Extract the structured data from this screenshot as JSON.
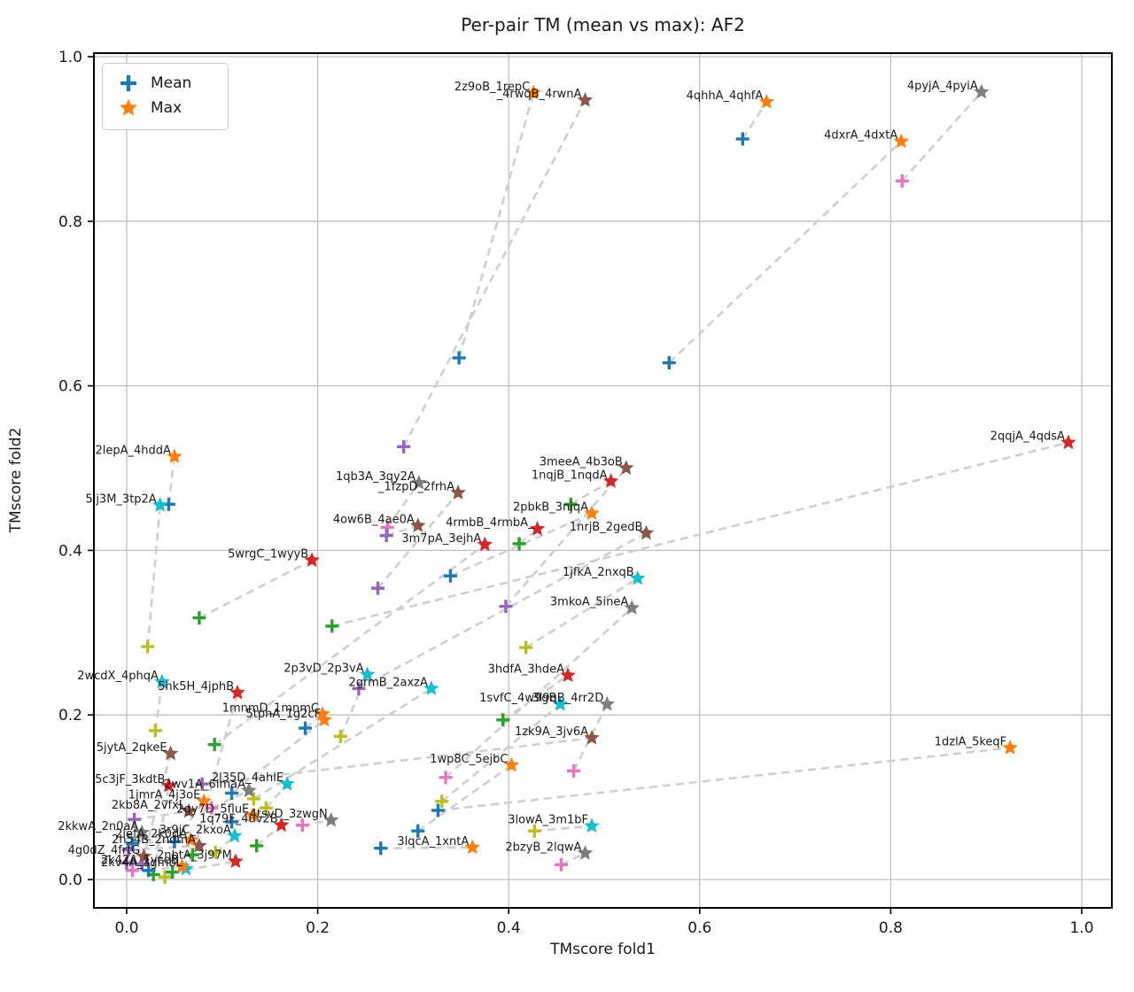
{
  "title": "Per-pair TM (mean vs max): AF2",
  "xlabel": "TMscore fold1",
  "ylabel": "TMscore fold2",
  "legend": {
    "mean_label": "Mean",
    "max_label": "Max"
  },
  "colors": {
    "mean_legend": "#1f77b4",
    "max_legend": "#ff7f0e",
    "grid": "#c0c0c0",
    "spine": "#000000",
    "connector": "#cfcfcf",
    "text": "#1a1a1a"
  },
  "chart_data": {
    "type": "scatter",
    "title": "Per-pair TM (mean vs max): AF2",
    "xlabel": "TMscore fold1",
    "ylabel": "TMscore fold2",
    "xlim": [
      -0.034,
      1.031
    ],
    "ylim": [
      -0.035,
      1.004
    ],
    "x_ticks": [
      0.0,
      0.2,
      0.4,
      0.6,
      0.8,
      1.0
    ],
    "y_ticks": [
      0.0,
      0.2,
      0.4,
      0.6,
      0.8,
      1.0
    ],
    "grid": true,
    "legend_position": "upper left",
    "series_legend": [
      {
        "name": "Mean",
        "marker": "plus",
        "color": "#1f77b4"
      },
      {
        "name": "Max",
        "marker": "star",
        "color": "#ff7f0e"
      }
    ],
    "pairs": [
      {
        "label": "2z9oB_1repC",
        "mean": [
          0.348,
          0.634
        ],
        "max": [
          0.426,
          0.956
        ],
        "mean_color": "#1f77b4",
        "max_color": "#ff7f0e"
      },
      {
        "label": "_4rwqB_4rwnA",
        "mean": [
          0.29,
          0.526
        ],
        "max": [
          0.48,
          0.947
        ],
        "mean_color": "#9467bd",
        "max_color": "#8c564b"
      },
      {
        "label": "4qhhA_4qhfA",
        "mean": [
          0.645,
          0.9
        ],
        "max": [
          0.67,
          0.945
        ],
        "mean_color": "#1f77b4",
        "max_color": "#ff7f0e"
      },
      {
        "label": "4pyjA_4pyiA",
        "mean": [
          0.812,
          0.849
        ],
        "max": [
          0.895,
          0.957
        ],
        "mean_color": "#e377c2",
        "max_color": "#7f7f7f"
      },
      {
        "label": "4dxrA_4dxtA",
        "mean": [
          0.568,
          0.628
        ],
        "max": [
          0.811,
          0.897
        ],
        "mean_color": "#1f77b4",
        "max_color": "#ff7f0e"
      },
      {
        "label": "2lepA_4hddA",
        "mean": [
          0.044,
          0.456
        ],
        "max": [
          0.05,
          0.514
        ],
        "mean_color": "#1f77b4",
        "max_color": "#ff7f0e"
      },
      {
        "label": "5lj3M_3tp2A",
        "mean": [
          0.022,
          0.283
        ],
        "max": [
          0.035,
          0.455
        ],
        "mean_color": "#bcbd22",
        "max_color": "#17becf"
      },
      {
        "label": "1qb3A_3qy2A",
        "mean": [
          0.273,
          0.428
        ],
        "max": [
          0.306,
          0.482
        ],
        "mean_color": "#e377c2",
        "max_color": "#7f7f7f"
      },
      {
        "label": "_1fzpD_2frhA",
        "mean": [
          0.263,
          0.354
        ],
        "max": [
          0.347,
          0.47
        ],
        "mean_color": "#9467bd",
        "max_color": "#8c564b"
      },
      {
        "label": "3meeA_4b3oB",
        "mean": [
          0.397,
          0.332
        ],
        "max": [
          0.523,
          0.5
        ],
        "mean_color": "#9467bd",
        "max_color": "#8c564b"
      },
      {
        "label": "1nqjB_1nqdA",
        "mean": [
          0.465,
          0.456
        ],
        "max": [
          0.507,
          0.484
        ],
        "mean_color": "#2ca02c",
        "max_color": "#d62728"
      },
      {
        "label": "2pbkB_3njqA",
        "mean": [
          0.339,
          0.369
        ],
        "max": [
          0.487,
          0.445
        ],
        "mean_color": "#1f77b4",
        "max_color": "#ff7f0e"
      },
      {
        "label": "4ow6B_4ae0A",
        "mean": [
          0.272,
          0.418
        ],
        "max": [
          0.305,
          0.43
        ],
        "mean_color": "#9467bd",
        "max_color": "#8c564b"
      },
      {
        "label": "4rmbB_4rmbA_",
        "mean": [
          0.411,
          0.408
        ],
        "max": [
          0.43,
          0.426
        ],
        "mean_color": "#2ca02c",
        "max_color": "#d62728"
      },
      {
        "label": "1nrjB_2gedB",
        "mean": [
          0.243,
          0.232
        ],
        "max": [
          0.544,
          0.421
        ],
        "mean_color": "#9467bd",
        "max_color": "#8c564b"
      },
      {
        "label": "3m7pA_3ejhA",
        "mean": [
          0.092,
          0.164
        ],
        "max": [
          0.375,
          0.407
        ],
        "mean_color": "#2ca02c",
        "max_color": "#d62728"
      },
      {
        "label": "5wrgC_1wyyB",
        "mean": [
          0.076,
          0.318
        ],
        "max": [
          0.194,
          0.388
        ],
        "mean_color": "#2ca02c",
        "max_color": "#d62728"
      },
      {
        "label": "1jfkA_2nxqB",
        "mean": [
          0.418,
          0.282
        ],
        "max": [
          0.535,
          0.366
        ],
        "mean_color": "#bcbd22",
        "max_color": "#17becf"
      },
      {
        "label": "3mkoA_5ineA",
        "mean": [
          0.334,
          0.124
        ],
        "max": [
          0.529,
          0.33
        ],
        "mean_color": "#e377c2",
        "max_color": "#7f7f7f"
      },
      {
        "label": "2wcdX_4phqA",
        "mean": [
          0.03,
          0.181
        ],
        "max": [
          0.037,
          0.24
        ],
        "mean_color": "#bcbd22",
        "max_color": "#17becf"
      },
      {
        "label": "5hk5H_4jphB",
        "mean": [
          0.069,
          0.03
        ],
        "max": [
          0.116,
          0.227
        ],
        "mean_color": "#2ca02c",
        "max_color": "#d62728"
      },
      {
        "label": "2p3vD_2p3vA",
        "mean": [
          0.224,
          0.174
        ],
        "max": [
          0.252,
          0.249
        ],
        "mean_color": "#bcbd22",
        "max_color": "#17becf"
      },
      {
        "label": "2grmB_2axzA",
        "mean": [
          0.133,
          0.098
        ],
        "max": [
          0.319,
          0.232
        ],
        "mean_color": "#bcbd22",
        "max_color": "#17becf"
      },
      {
        "label": "3hdfA_3hdeA",
        "mean": [
          0.394,
          0.194
        ],
        "max": [
          0.462,
          0.248
        ],
        "mean_color": "#2ca02c",
        "max_color": "#d62728"
      },
      {
        "label": "1svfC_4w9gB",
        "mean": [
          0.33,
          0.095
        ],
        "max": [
          0.454,
          0.213
        ],
        "mean_color": "#bcbd22",
        "max_color": "#17becf"
      },
      {
        "label": "3l9qB_4rr2D",
        "mean": [
          0.468,
          0.132
        ],
        "max": [
          0.503,
          0.213
        ],
        "mean_color": "#e377c2",
        "max_color": "#7f7f7f"
      },
      {
        "label": "1mnmD_1mnmC",
        "mean": [
          0.187,
          0.184
        ],
        "max": [
          0.205,
          0.201
        ],
        "mean_color": "#1f77b4",
        "max_color": "#ff7f0e"
      },
      {
        "label": "5tphA_1g2cF",
        "mean": [
          0.11,
          0.105
        ],
        "max": [
          0.207,
          0.194
        ],
        "mean_color": "#1f77b4",
        "max_color": "#ff7f0e"
      },
      {
        "label": "1zk9A_3jv6A",
        "mean": [
          0.079,
          0.116
        ],
        "max": [
          0.487,
          0.172
        ],
        "mean_color": "#9467bd",
        "max_color": "#8c564b"
      },
      {
        "label": "1dzlA_5keqF",
        "mean": [
          0.326,
          0.084
        ],
        "max": [
          0.925,
          0.16
        ],
        "mean_color": "#1f77b4",
        "max_color": "#ff7f0e"
      },
      {
        "label": "2qqjA_4qdsA",
        "mean": [
          0.215,
          0.308
        ],
        "max": [
          0.986,
          0.531
        ],
        "mean_color": "#2ca02c",
        "max_color": "#d62728"
      },
      {
        "label": "1wp8C_5ejbC",
        "mean": [
          0.305,
          0.059
        ],
        "max": [
          0.403,
          0.139
        ],
        "mean_color": "#1f77b4",
        "max_color": "#ff7f0e"
      },
      {
        "label": "5jytA_2qkeE",
        "mean": [
          0.016,
          0.019
        ],
        "max": [
          0.046,
          0.153
        ],
        "mean_color": "#9467bd",
        "max_color": "#8c564b"
      },
      {
        "label": "4tsvD_3zwgN",
        "mean": [
          0.184,
          0.066
        ],
        "max": [
          0.214,
          0.072
        ],
        "mean_color": "#e377c2",
        "max_color": "#7f7f7f"
      },
      {
        "label": "3lqcA_1xntA",
        "mean": [
          0.266,
          0.038
        ],
        "max": [
          0.362,
          0.039
        ],
        "mean_color": "#1f77b4",
        "max_color": "#ff7f0e"
      },
      {
        "label": "3lowA_3m1bF",
        "mean": [
          0.427,
          0.059
        ],
        "max": [
          0.487,
          0.065
        ],
        "mean_color": "#bcbd22",
        "max_color": "#17becf"
      },
      {
        "label": "2bzyB_2lqwA",
        "mean": [
          0.455,
          0.018
        ],
        "max": [
          0.48,
          0.032
        ],
        "mean_color": "#e377c2",
        "max_color": "#7f7f7f"
      },
      {
        "label": "5c3jF_3kdtB",
        "mean": [
          0.028,
          0.006
        ],
        "max": [
          0.044,
          0.114
        ],
        "mean_color": "#2ca02c",
        "max_color": "#d62728"
      },
      {
        "label": "2wv1A_6imaA",
        "mean": [
          0.089,
          0.087
        ],
        "max": [
          0.128,
          0.108
        ],
        "mean_color": "#e377c2",
        "max_color": "#7f7f7f"
      },
      {
        "label": "2l35D_4ahlE",
        "mean": [
          0.146,
          0.087
        ],
        "max": [
          0.168,
          0.116
        ],
        "mean_color": "#bcbd22",
        "max_color": "#17becf"
      },
      {
        "label": "1jmrA_4j3oE",
        "mean": [
          0.05,
          0.046
        ],
        "max": [
          0.081,
          0.095
        ],
        "mean_color": "#1f77b4",
        "max_color": "#ff7f0e"
      },
      {
        "label": "2kb8A_2vfxL",
        "mean": [
          0.008,
          0.073
        ],
        "max": [
          0.065,
          0.083
        ],
        "mean_color": "#9467bd",
        "max_color": "#8c564b"
      },
      {
        "label": "2kv4A_3gmbL",
        "mean": [
          0.04,
          0.003
        ],
        "max": [
          0.062,
          0.013
        ],
        "mean_color": "#bcbd22",
        "max_color": "#17becf"
      },
      {
        "label": "2gy7D_5fluE",
        "mean": [
          0.11,
          0.07
        ],
        "max": [
          0.132,
          0.078
        ],
        "mean_color": "#1f77b4",
        "max_color": "#ff7f0e"
      },
      {
        "label": "2kkwA_2n0aA",
        "mean": [
          0.006,
          0.011
        ],
        "max": [
          0.016,
          0.057
        ],
        "mean_color": "#e377c2",
        "max_color": "#7f7f7f"
      },
      {
        "label": "1q79F_4uv2B",
        "mean": [
          0.136,
          0.041
        ],
        "max": [
          0.162,
          0.066
        ],
        "mean_color": "#2ca02c",
        "max_color": "#d62728"
      },
      {
        "label": "3r9jC_2kxoA",
        "mean": [
          0.093,
          0.033
        ],
        "max": [
          0.113,
          0.053
        ],
        "mean_color": "#bcbd22",
        "max_color": "#17becf"
      },
      {
        "label": "2h54B_2ndmA",
        "mean": [
          0.002,
          0.036
        ],
        "max": [
          0.076,
          0.041
        ],
        "mean_color": "#9467bd",
        "max_color": "#8c564b"
      },
      {
        "label": "2lefA_2k0dA",
        "mean": [
          0.006,
          0.044
        ],
        "max": [
          0.067,
          0.048
        ],
        "mean_color": "#1f77b4",
        "max_color": "#ff7f0e"
      },
      {
        "label": "4g0dZ_4frtG",
        "mean": [
          0.0,
          0.02
        ],
        "max": [
          0.018,
          0.028
        ],
        "mean_color": "#9467bd",
        "max_color": "#8c564b"
      },
      {
        "label": "2nbtA_3j97M",
        "mean": [
          0.048,
          0.009
        ],
        "max": [
          0.114,
          0.022
        ],
        "mean_color": "#2ca02c",
        "max_color": "#d62728"
      },
      {
        "label": "2k42A_1yceB",
        "mean": [
          0.023,
          0.011
        ],
        "max": [
          0.058,
          0.016
        ],
        "mean_color": "#1f77b4",
        "max_color": "#ff7f0e"
      }
    ]
  }
}
